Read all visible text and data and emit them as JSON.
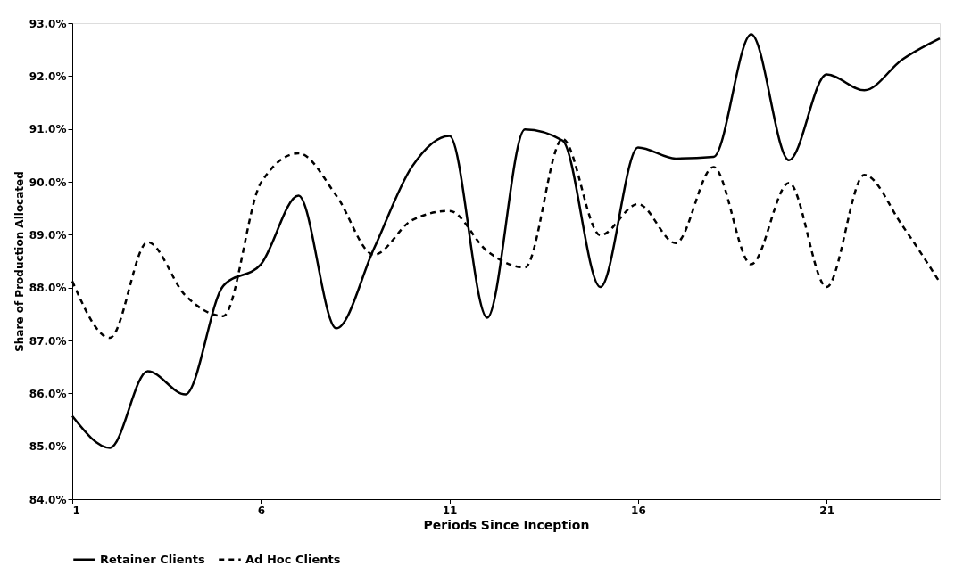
{
  "chart_data": {
    "type": "line",
    "xlabel": "Periods Since Inception",
    "ylabel": "Share of Production  Allocated",
    "x": [
      1,
      2,
      3,
      4,
      5,
      6,
      7,
      8,
      9,
      10,
      11,
      12,
      13,
      14,
      15,
      16,
      17,
      18,
      19,
      20,
      21,
      22,
      23,
      24
    ],
    "xlim": [
      1,
      24
    ],
    "xticks": [
      1,
      6,
      11,
      16,
      21
    ],
    "ylim": [
      84,
      93
    ],
    "yticks": [
      {
        "value": 84,
        "label": "84.0%"
      },
      {
        "value": 85,
        "label": "85.0%"
      },
      {
        "value": 86,
        "label": "86.0%"
      },
      {
        "value": 87,
        "label": "87.0%"
      },
      {
        "value": 88,
        "label": "88.0%"
      },
      {
        "value": 89,
        "label": "89.0%"
      },
      {
        "value": 90,
        "label": "90.0%"
      },
      {
        "value": 91,
        "label": "91.0%"
      },
      {
        "value": 92,
        "label": "92.0%"
      },
      {
        "value": 93,
        "label": "93.0%"
      }
    ],
    "grid": false,
    "legend": "bottom",
    "marker": "none",
    "series": [
      {
        "name": "Retainer Clients",
        "color": "#000000",
        "line_style": "solid",
        "values": [
          85.57,
          84.97,
          86.42,
          85.98,
          88.03,
          88.44,
          89.74,
          87.23,
          88.74,
          90.28,
          90.87,
          87.43,
          90.99,
          90.78,
          88.01,
          90.65,
          90.44,
          90.47,
          92.79,
          90.41,
          92.03,
          91.73,
          92.31,
          92.71
        ]
      },
      {
        "name": "Ad Hoc Clients",
        "color": "#000000",
        "line_style": "dashed",
        "values": [
          88.12,
          87.05,
          88.86,
          87.85,
          87.46,
          89.98,
          90.54,
          89.74,
          88.62,
          89.27,
          89.45,
          88.69,
          88.38,
          90.81,
          88.99,
          89.58,
          88.84,
          90.28,
          88.44,
          89.98,
          88.01,
          90.13,
          89.18,
          88.1
        ]
      }
    ]
  }
}
